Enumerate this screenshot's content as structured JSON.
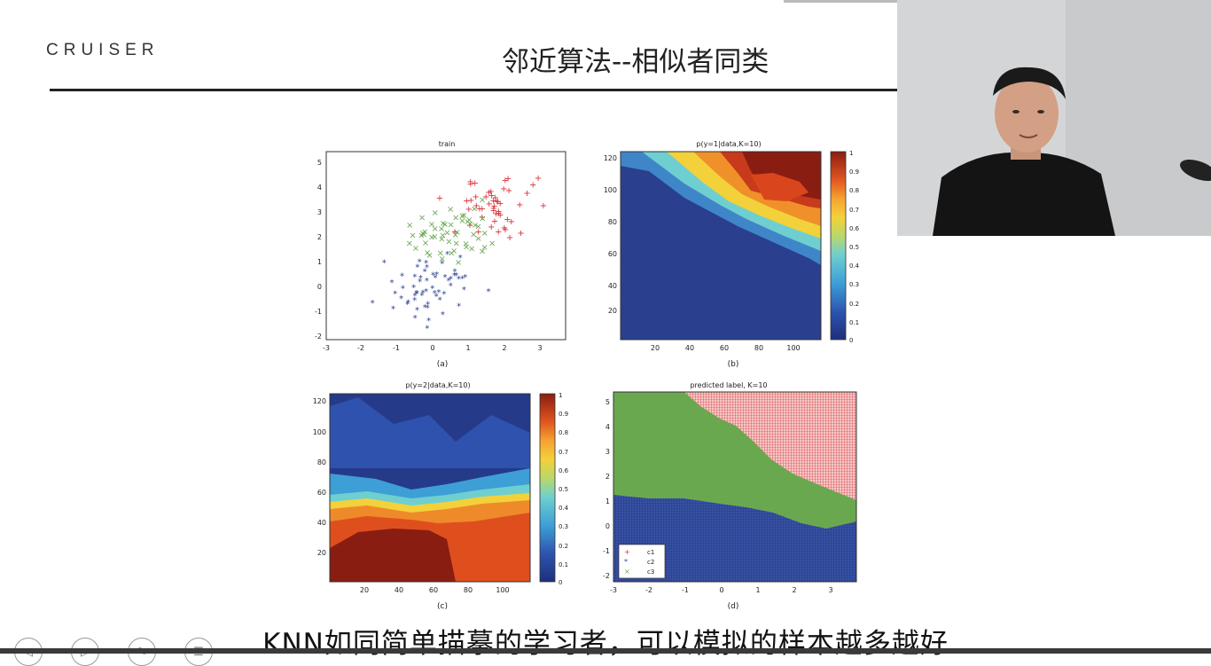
{
  "slide": {
    "logo": "CRUISER",
    "title": "邻近算法--相似者同类"
  },
  "subtitle": "KNN如同简单描摹的学习者，可以模拟的样本越多越好",
  "panels": {
    "a": {
      "title": "train",
      "caption": "(a)",
      "xticks": [
        "-3",
        "-2",
        "-1",
        "0",
        "1",
        "2",
        "3"
      ],
      "yticks": [
        "5",
        "4",
        "3",
        "2",
        "1",
        "0",
        "-1",
        "-2"
      ]
    },
    "b": {
      "title": "p(y=1|data,K=10)",
      "caption": "(b)",
      "xticks": [
        "20",
        "40",
        "60",
        "80",
        "100"
      ],
      "yticks": [
        "120",
        "100",
        "80",
        "60",
        "40",
        "20"
      ],
      "cbar": [
        "1",
        "0.9",
        "0.8",
        "0.7",
        "0.6",
        "0.5",
        "0.4",
        "0.3",
        "0.2",
        "0.1",
        "0"
      ]
    },
    "c": {
      "title": "p(y=2|data,K=10)",
      "caption": "(c)",
      "xticks": [
        "20",
        "40",
        "60",
        "80",
        "100"
      ],
      "yticks": [
        "120",
        "100",
        "80",
        "60",
        "40",
        "20"
      ],
      "cbar": [
        "1",
        "0.9",
        "0.8",
        "0.7",
        "0.6",
        "0.5",
        "0.4",
        "0.3",
        "0.2",
        "0.1",
        "0"
      ]
    },
    "d": {
      "title": "predicted label,  K=10",
      "caption": "(d)",
      "xticks": [
        "-3",
        "-2",
        "-1",
        "0",
        "1",
        "2",
        "3"
      ],
      "yticks": [
        "5",
        "4",
        "3",
        "2",
        "1",
        "0",
        "-1",
        "-2"
      ],
      "legend": [
        "c1",
        "c2",
        "c3"
      ]
    }
  },
  "colors": {
    "red": "#d9303a",
    "blue": "#2b3f93",
    "green": "#6aa84f"
  },
  "controls": [
    "prev-icon",
    "play-icon",
    "pen-icon",
    "menu-icon"
  ]
}
